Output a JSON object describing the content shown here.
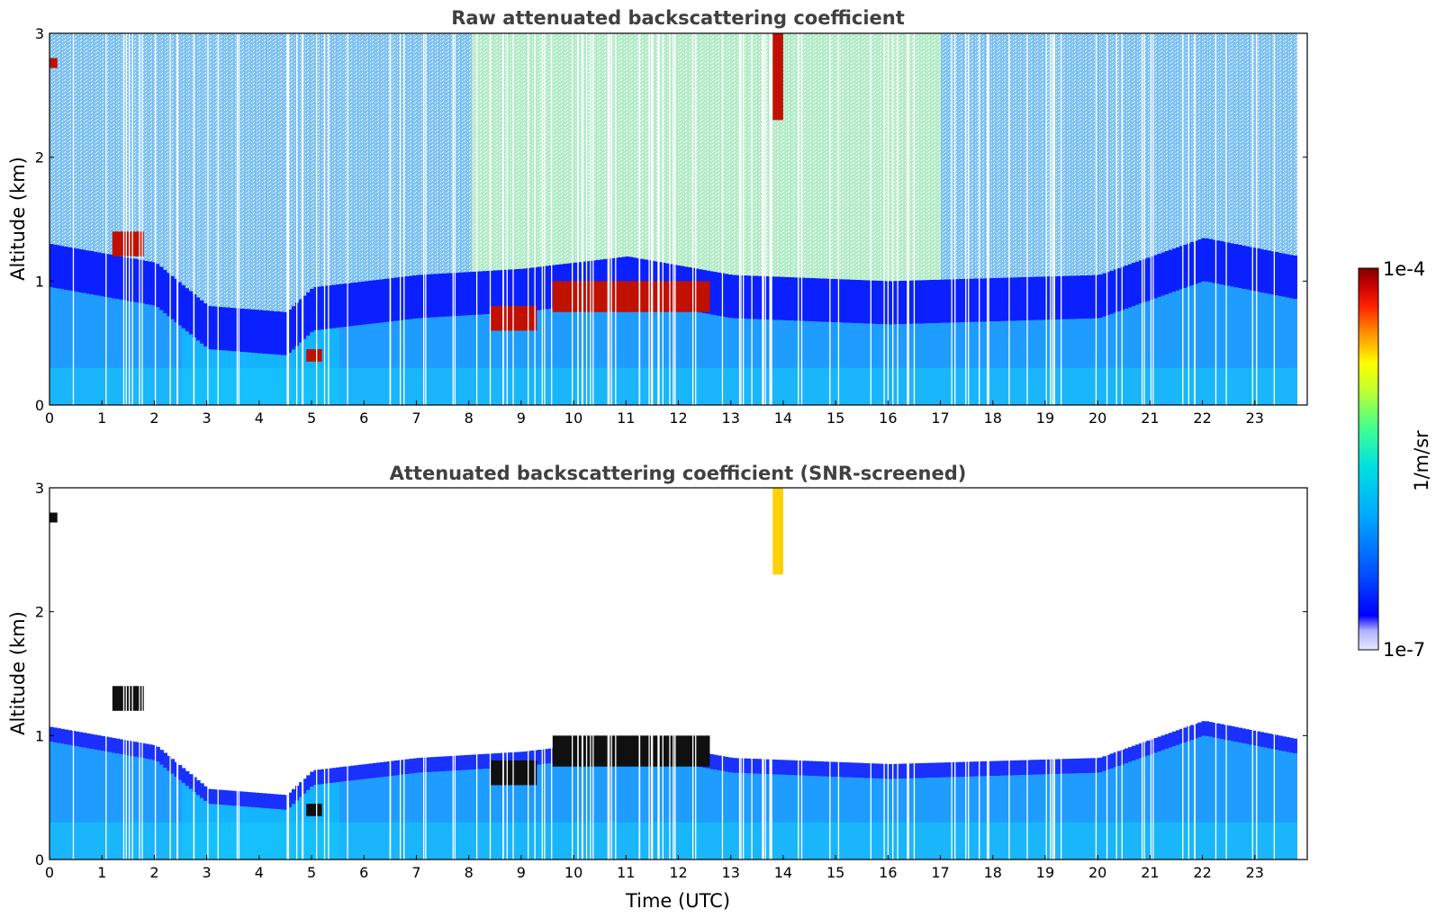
{
  "chart_data": [
    {
      "type": "heatmap",
      "title": "Raw attenuated backscattering coefficient",
      "xlabel": "",
      "ylabel": "Altitude (km)",
      "xlim": [
        0,
        24
      ],
      "ylim": [
        0,
        3
      ],
      "x_ticks": [
        0,
        1,
        2,
        3,
        4,
        5,
        6,
        7,
        8,
        9,
        10,
        11,
        12,
        13,
        14,
        15,
        16,
        17,
        18,
        19,
        20,
        21,
        22,
        23
      ],
      "y_ticks": [
        0,
        1,
        2,
        3
      ],
      "layers": {
        "boundary_layer_top_km": [
          [
            0,
            0.95
          ],
          [
            2,
            0.8
          ],
          [
            3,
            0.45
          ],
          [
            4.5,
            0.4
          ],
          [
            5,
            0.6
          ],
          [
            7,
            0.7
          ],
          [
            9,
            0.75
          ],
          [
            11,
            0.85
          ],
          [
            13,
            0.7
          ],
          [
            16,
            0.65
          ],
          [
            20,
            0.7
          ],
          [
            22,
            1.0
          ],
          [
            23.8,
            0.85
          ]
        ],
        "clouds": [
          {
            "x": [
              1.2,
              1.8
            ],
            "y_km": [
              1.2,
              1.4
            ]
          },
          {
            "x": [
              4.9,
              5.2
            ],
            "y_km": [
              0.35,
              0.45
            ]
          },
          {
            "x": [
              8.4,
              9.3
            ],
            "y_km": [
              0.6,
              0.8
            ]
          },
          {
            "x": [
              9.6,
              12.6
            ],
            "y_km": [
              0.75,
              1.0
            ]
          },
          {
            "x": [
              13.8,
              14.0
            ],
            "y_km": [
              2.3,
              3.0
            ]
          },
          {
            "x": [
              0.0,
              0.15
            ],
            "y_km": [
              2.72,
              2.8
            ]
          }
        ]
      }
    },
    {
      "type": "heatmap",
      "title": "Attenuated backscattering coefficient (SNR-screened)",
      "xlabel": "Time (UTC)",
      "ylabel": "Altitude (km)",
      "xlim": [
        0,
        24
      ],
      "ylim": [
        0,
        3
      ],
      "x_ticks": [
        0,
        1,
        2,
        3,
        4,
        5,
        6,
        7,
        8,
        9,
        10,
        11,
        12,
        13,
        14,
        15,
        16,
        17,
        18,
        19,
        20,
        21,
        22,
        23
      ],
      "y_ticks": [
        0,
        1,
        2,
        3
      ]
    }
  ],
  "colorbar": {
    "label": "1/m/sr",
    "max_label": "1e-4",
    "min_label": "1e-7",
    "colors": [
      "#e8e8ff",
      "#b0b0ff",
      "#0000ff",
      "#0060ff",
      "#00a8ff",
      "#00e0e0",
      "#40ff90",
      "#c0ff30",
      "#ffff00",
      "#ff9000",
      "#ff2000",
      "#c00000",
      "#800000"
    ]
  }
}
